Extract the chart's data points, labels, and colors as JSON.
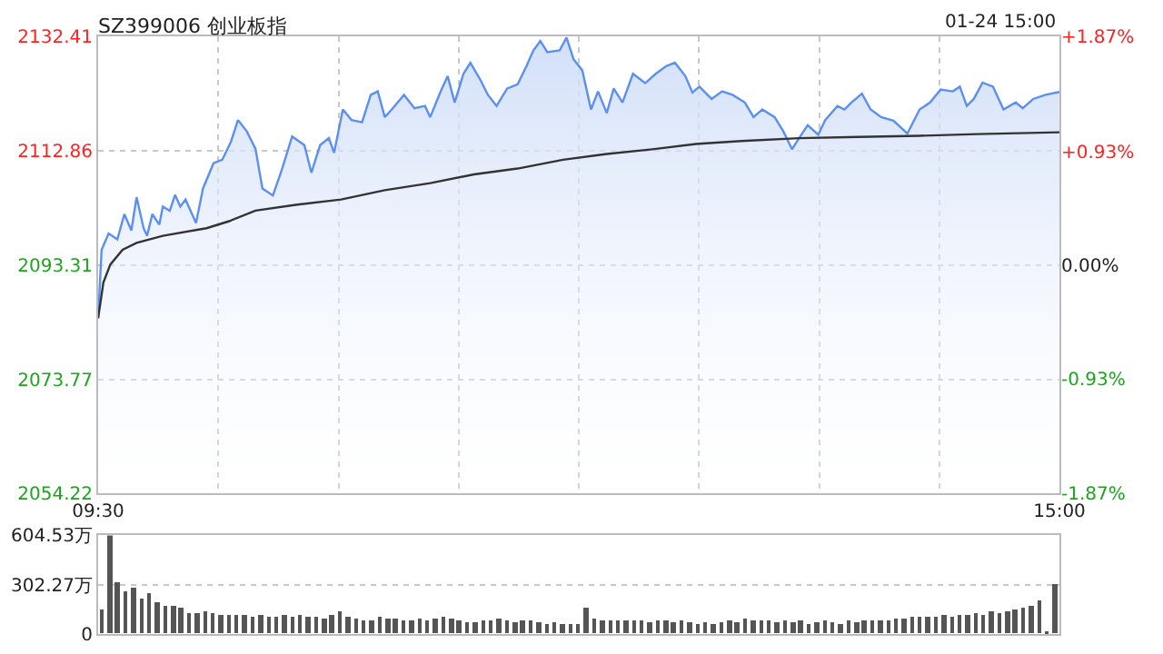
{
  "chart_data": [
    {
      "type": "area",
      "title": "SZ399006 创业板指",
      "annotations": [
        "01-24 15:00"
      ],
      "series": [
        {
          "type": "area",
          "color": "#5b8ff0",
          "x": [
            9.5,
            9.52,
            9.56,
            9.61,
            9.65,
            9.69,
            9.72,
            9.76,
            9.78,
            9.81,
            9.85,
            9.87,
            9.91,
            9.94,
            9.97,
            10.0,
            10.06,
            10.1,
            10.16,
            10.21,
            10.26,
            10.3,
            10.35,
            10.4,
            10.44,
            10.5,
            10.55,
            10.61,
            10.68,
            10.72,
            10.77,
            10.82,
            10.85,
            10.9,
            10.95,
            11.01,
            11.06,
            11.1,
            11.14,
            11.18,
            11.25,
            11.31,
            11.37,
            11.4,
            11.46,
            11.5,
            11.54,
            11.59,
            11.63,
            11.69,
            11.73,
            11.78,
            11.84,
            11.9,
            11.95,
            11.99,
            12.03,
            12.07,
            12.14,
            12.18,
            12.22,
            12.27,
            12.32,
            12.36,
            12.41,
            12.45,
            12.5,
            12.56,
            12.63,
            12.69,
            12.75,
            12.8,
            12.86,
            12.9,
            12.94,
            13.01,
            13.07,
            13.13,
            13.2,
            13.25,
            13.3,
            13.37,
            13.42,
            13.47,
            13.51,
            13.56,
            13.62,
            13.66,
            13.73,
            13.77,
            13.81,
            13.87,
            13.92,
            13.98,
            14.05,
            14.13,
            14.2,
            14.26,
            14.32,
            14.39,
            14.43,
            14.47,
            14.51,
            14.56,
            14.62,
            14.68,
            14.75,
            14.79,
            14.85,
            14.92,
            15
          ],
          "values": [
            2084.2,
            2095.9,
            2098.7,
            2097.7,
            2102.0,
            2099.2,
            2104.9,
            2099.6,
            2098.3,
            2102.0,
            2100.2,
            2103.3,
            2102.6,
            2105.3,
            2103.3,
            2104.5,
            2100.5,
            2106.4,
            2110.7,
            2111.3,
            2114.4,
            2118.1,
            2116.2,
            2113.2,
            2106.4,
            2105.2,
            2109.5,
            2115.3,
            2113.8,
            2109.1,
            2113.8,
            2115.0,
            2112.5,
            2119.9,
            2118.1,
            2117.7,
            2122.4,
            2123.0,
            2118.6,
            2119.9,
            2122.4,
            2120.1,
            2120.5,
            2118.6,
            2123.0,
            2125.6,
            2121.1,
            2126.0,
            2127.9,
            2124.8,
            2122.4,
            2120.5,
            2123.5,
            2124.2,
            2127.3,
            2130.0,
            2131.6,
            2129.7,
            2130.0,
            2132.2,
            2128.5,
            2126.6,
            2119.9,
            2123.0,
            2119.3,
            2123.5,
            2121.1,
            2126.0,
            2124.4,
            2126.0,
            2127.3,
            2127.9,
            2125.6,
            2122.8,
            2123.8,
            2121.7,
            2123.0,
            2122.4,
            2121.1,
            2118.6,
            2119.9,
            2118.6,
            2116.2,
            2113.1,
            2115.0,
            2117.2,
            2115.6,
            2118.1,
            2120.5,
            2119.9,
            2121.1,
            2122.6,
            2119.9,
            2118.6,
            2118.0,
            2115.8,
            2119.9,
            2121.1,
            2123.3,
            2123.0,
            2123.8,
            2120.5,
            2121.7,
            2124.5,
            2123.8,
            2119.9,
            2121.1,
            2120.1,
            2121.7,
            2122.4,
            2122.9
          ]
        },
        {
          "type": "line",
          "color": "#333333",
          "x": [
            9.5,
            9.53,
            9.57,
            9.64,
            9.72,
            9.87,
            10.12,
            10.25,
            10.4,
            10.63,
            10.89,
            11.14,
            11.4,
            11.65,
            11.9,
            12.16,
            12.41,
            12.67,
            12.92,
            13.18,
            13.51,
            13.85,
            14.2,
            14.53,
            15
          ],
          "values": [
            2084.2,
            2090.3,
            2093.4,
            2095.9,
            2097.1,
            2098.3,
            2099.6,
            2100.8,
            2102.6,
            2103.6,
            2104.5,
            2106.1,
            2107.3,
            2108.8,
            2109.8,
            2111.3,
            2112.3,
            2113.1,
            2114.0,
            2114.5,
            2115.0,
            2115.2,
            2115.4,
            2115.7,
            2116.0
          ]
        }
      ],
      "xlim": [
        9.5,
        15
      ],
      "xticks": [
        {
          "value": 9.5,
          "label": "09:30"
        },
        {
          "value": 10.1875,
          "label": null
        },
        {
          "value": 10.875,
          "label": null
        },
        {
          "value": 11.5625,
          "label": null
        },
        {
          "value": 12.25,
          "label": null
        },
        {
          "value": 12.9375,
          "label": null
        },
        {
          "value": 13.625,
          "label": null
        },
        {
          "value": 14.3125,
          "label": null
        },
        {
          "value": 15,
          "label": "15:00"
        }
      ],
      "ylim": [
        2054.22,
        2132.41
      ],
      "yticks": [
        2054.22,
        2073.77,
        2093.31,
        2112.86,
        2132.41
      ],
      "y2lim": [
        -1.87,
        1.87
      ],
      "y2ticks": [
        {
          "value": -1.87,
          "label": "-1.87%"
        },
        {
          "value": -0.93,
          "label": "-0.93%"
        },
        {
          "value": 0,
          "label": "0.00%"
        },
        {
          "value": 0.93,
          "label": "+0.93%"
        },
        {
          "value": 1.87,
          "label": "+1.87%"
        }
      ],
      "grid": true
    },
    {
      "type": "bar",
      "color": "#555555",
      "categories": [
        null,
        null,
        null,
        null,
        null,
        null,
        null,
        null,
        null,
        null,
        null,
        null,
        null,
        null,
        null,
        null,
        null,
        null,
        null,
        null,
        null,
        null,
        null,
        null,
        null,
        null,
        null,
        null,
        null,
        null,
        null,
        null,
        null,
        null,
        null,
        null,
        null,
        null,
        null,
        null,
        null,
        null,
        null,
        null,
        null,
        null,
        null,
        null,
        null,
        null,
        null,
        null,
        null,
        null,
        null,
        null,
        null,
        null,
        null,
        null,
        null,
        null,
        null,
        null,
        null,
        null,
        null,
        null,
        null,
        null,
        null,
        null,
        null,
        null,
        null,
        null,
        null,
        null,
        null,
        null,
        null,
        null,
        null,
        null,
        null,
        null,
        null,
        null,
        null,
        null,
        null,
        null,
        null,
        null,
        null,
        null,
        null,
        null,
        null,
        null,
        null,
        null,
        null,
        null,
        null,
        null,
        null,
        null,
        null,
        null,
        null,
        null,
        null,
        null,
        null,
        null,
        null,
        null,
        null,
        null,
        null
      ],
      "values": [
        150,
        600,
        320,
        260,
        280,
        210,
        250,
        190,
        170,
        170,
        160,
        130,
        130,
        140,
        130,
        120,
        120,
        120,
        110,
        100,
        120,
        100,
        100,
        110,
        100,
        110,
        100,
        100,
        90,
        110,
        140,
        100,
        90,
        80,
        80,
        100,
        90,
        90,
        80,
        80,
        90,
        80,
        90,
        100,
        90,
        80,
        70,
        70,
        80,
        80,
        90,
        80,
        70,
        80,
        80,
        70,
        60,
        70,
        60,
        60,
        60,
        160,
        90,
        80,
        80,
        80,
        80,
        80,
        80,
        70,
        80,
        80,
        70,
        80,
        70,
        60,
        70,
        60,
        70,
        80,
        70,
        90,
        80,
        80,
        80,
        70,
        80,
        70,
        80,
        60,
        70,
        80,
        70,
        60,
        80,
        70,
        80,
        80,
        80,
        80,
        90,
        90,
        100,
        100,
        100,
        100,
        110,
        100,
        120,
        110,
        130,
        120,
        140,
        130,
        140,
        150,
        160,
        170,
        200,
        10,
        300
      ],
      "ylim": [
        0,
        604.53
      ],
      "yticks": [
        0,
        {
          "value": 302.27,
          "label": "302.27万"
        },
        {
          "value": 604.53,
          "label": "604.53万"
        }
      ],
      "grid": "y",
      "tick_labels": "y"
    }
  ]
}
